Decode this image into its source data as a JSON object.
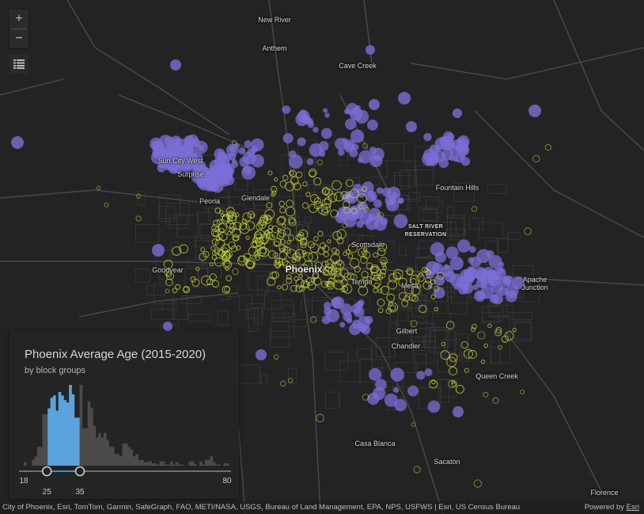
{
  "map": {
    "labels": {
      "new_river": "New River",
      "anthem": "Anthem",
      "cave_creek": "Cave Creek",
      "sun_city_west": "Sun City West",
      "surprise": "Surprise",
      "fountain_hills": "Fountain Hills",
      "peoria": "Peoria",
      "glendale": "Glendale",
      "salt_river_line1": "SALT RIVER",
      "salt_river_line2": "RESERVATION",
      "scottsdale": "Scottsdale",
      "phoenix": "Phoenix",
      "goodyear": "Goodyear",
      "tempe": "Tempe",
      "mesa": "Mesa",
      "apache_line1": "Apache",
      "apache_line2": "Junction",
      "gilbert": "Gilbert",
      "chandler": "Chandler",
      "queen_creek": "Queen Creek",
      "casa_blanca": "Casa Blanca",
      "sacaton": "Sacaton",
      "florence": "Florence"
    },
    "colors": {
      "background": "#232324",
      "older_symbol": "#7b6fd6",
      "younger_symbol": "#c8d23a",
      "selected_bin": "#5ba3dc",
      "unselected_bin": "#4d4a4a"
    }
  },
  "controls": {
    "zoom_in": "+",
    "zoom_out": "−",
    "legend_icon": "list-icon"
  },
  "panel": {
    "title": "Phoenix Average Age (2015-2020)",
    "subtitle": "by block groups",
    "slider": {
      "min_label": "18",
      "max_label": "80",
      "low_label": "25",
      "high_label": "35",
      "min": 18,
      "max": 80,
      "low": 25,
      "high": 35
    }
  },
  "chart_data": {
    "type": "bar",
    "title": "Phoenix Average Age (2015-2020)",
    "subtitle": "by block groups",
    "xlim": [
      18,
      80
    ],
    "selected_range": [
      25,
      35
    ],
    "values": [
      15,
      0,
      0,
      25,
      40,
      80,
      80,
      220,
      220,
      245,
      290,
      300,
      235,
      315,
      300,
      280,
      270,
      345,
      305,
      205,
      205,
      345,
      160,
      160,
      275,
      245,
      170,
      120,
      140,
      120,
      140,
      110,
      80,
      80,
      50,
      50,
      40,
      95,
      95,
      80,
      70,
      40,
      50,
      25,
      25,
      15,
      15,
      20,
      10,
      10,
      5,
      18,
      18,
      5,
      5,
      18,
      5,
      15,
      5,
      5,
      0,
      0,
      18,
      18,
      5,
      0,
      18,
      5,
      25,
      25,
      40,
      15,
      5,
      5,
      0,
      10,
      10
    ]
  },
  "attribution": {
    "sources": "City of Phoenix, Esri, TomTom, Garmin, SafeGraph, FAO, METI/NASA, USGS, Bureau of Land Management, EPA, NPS, USFWS | Esri, US Census Bureau",
    "powered_by": "Powered by",
    "esri_link": "Esri"
  }
}
